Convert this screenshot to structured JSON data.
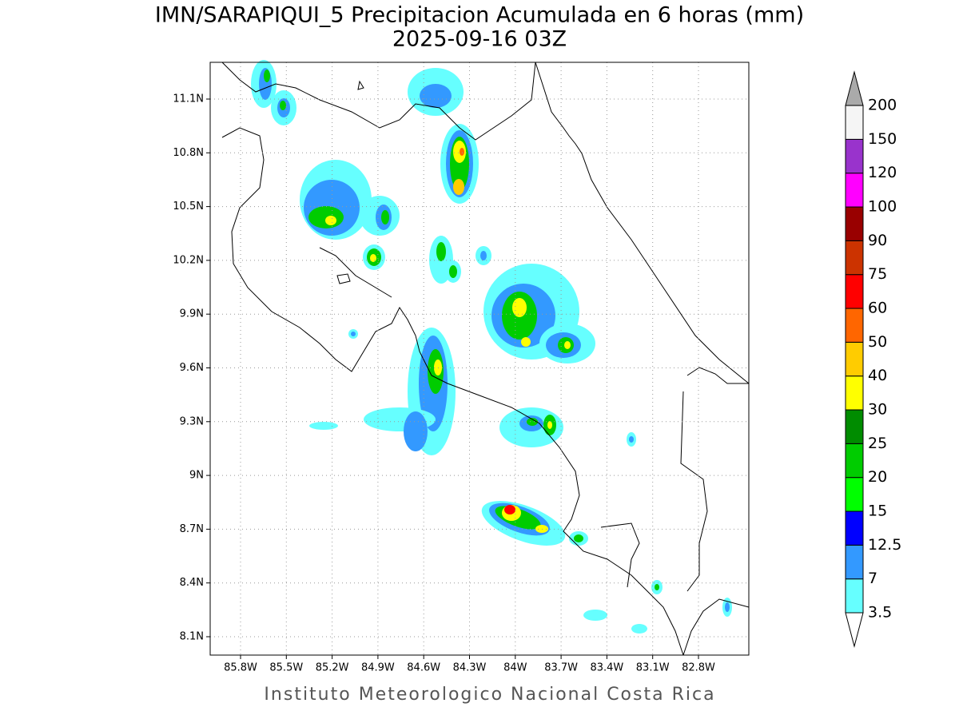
{
  "map": {
    "title": "IMN/SARAPIQUI_5 Precipitacion Acumulada en 6 horas (mm)",
    "subtitle": "2025-09-16 03Z",
    "lon_ticks": [
      "85.8W",
      "85.5W",
      "85.2W",
      "84.9W",
      "84.6W",
      "84.3W",
      "84W",
      "83.7W",
      "83.4W",
      "83.1W",
      "82.8W"
    ],
    "lat_ticks": [
      "11.1N",
      "10.8N",
      "10.5N",
      "10.2N",
      "9.9N",
      "9.6N",
      "9.3N",
      "9N",
      "8.7N",
      "8.4N",
      "8.1N"
    ],
    "colorbar": {
      "levels": [
        3.5,
        7,
        12.5,
        15,
        20,
        25,
        30,
        40,
        50,
        60,
        75,
        90,
        100,
        120,
        150,
        200
      ],
      "colors": [
        "#66ffff",
        "#3399ff",
        "#0000ff",
        "#00ff00",
        "#00cc00",
        "#008c00",
        "#ffff00",
        "#ffcc00",
        "#ff6600",
        "#ff0000",
        "#cc3300",
        "#990000",
        "#ff00ff",
        "#9933cc",
        "#f5f5f5"
      ],
      "over_color": "#aaaaaa",
      "under_color": "#ffffff"
    },
    "footer": "Instituto Meteorologico Nacional Costa Rica"
  }
}
